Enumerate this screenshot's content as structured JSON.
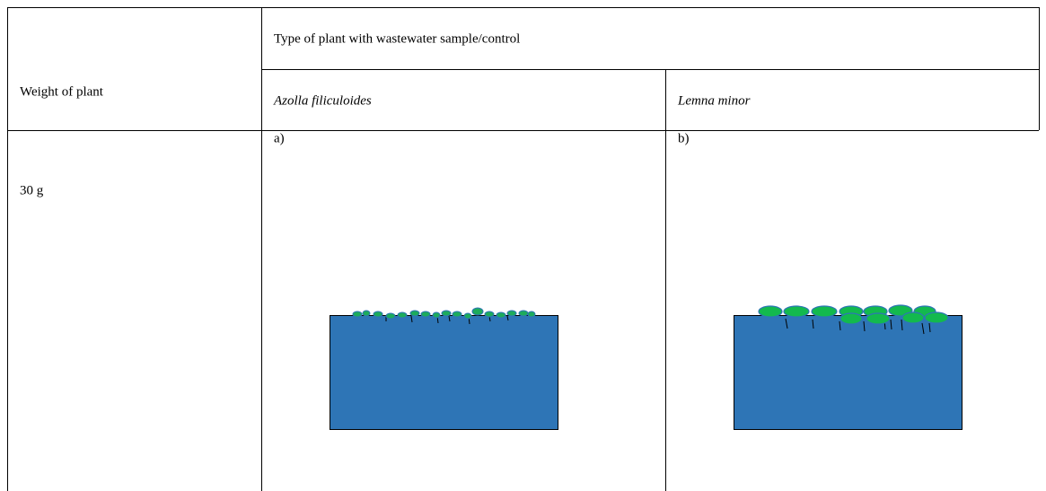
{
  "header": {
    "weight_label": "Weight of plant",
    "group_label": "Type of plant with wastewater sample/control",
    "columns": [
      "Azolla filiculoides",
      "Lemna minor"
    ]
  },
  "rows": [
    {
      "weight": "30 g",
      "cells": [
        "a)",
        "b)"
      ]
    }
  ]
}
